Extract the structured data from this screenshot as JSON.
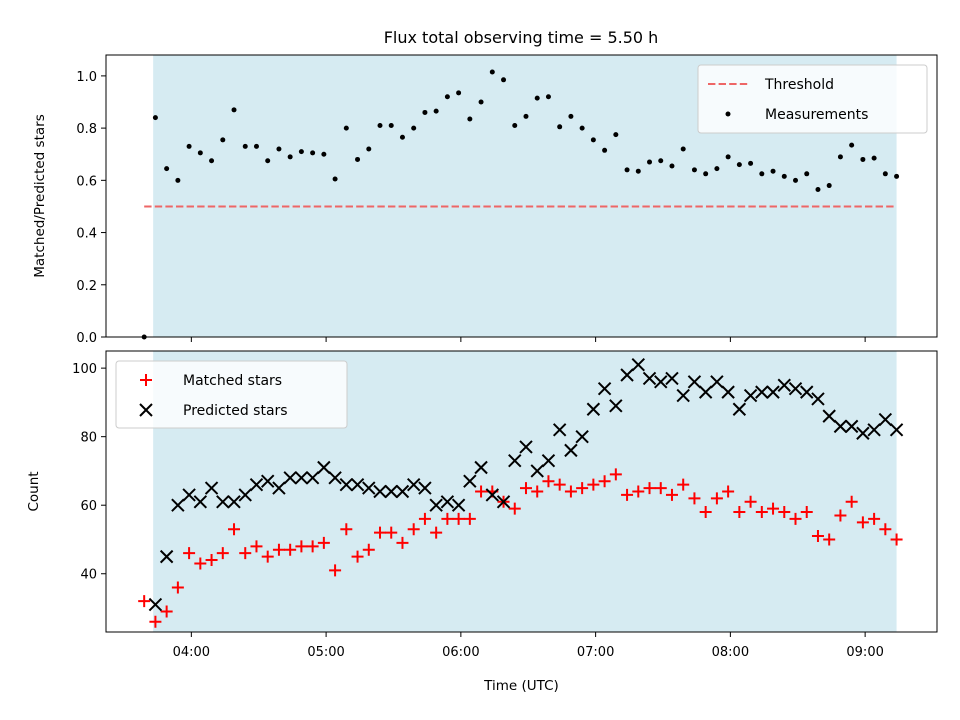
{
  "title": "Flux total observing time = 5.50 h",
  "colors": {
    "shade": "#add8e6",
    "threshold": "#ee6666",
    "measurement": "#000000",
    "matched": "#ff0000",
    "predicted": "#000000"
  },
  "chart_data": [
    {
      "type": "scatter",
      "ylabel": "Matched/Predicted stars",
      "xlabel": "",
      "ylim": [
        0,
        1.08
      ],
      "yticks": [
        0.0,
        0.2,
        0.4,
        0.6,
        0.8,
        1.0
      ],
      "ytick_labels": [
        "0.0",
        "0.2",
        "0.4",
        "0.6",
        "0.8",
        "1.0"
      ],
      "xlim": [
        "03:22",
        "09:32"
      ],
      "shaded_interval": [
        "03:43",
        "09:14"
      ],
      "legend": {
        "position": "top-right",
        "entries": [
          "Threshold",
          "Measurements"
        ]
      },
      "threshold": {
        "name": "Threshold",
        "y": 0.5,
        "x_range": [
          "03:39",
          "09:14"
        ]
      },
      "series": [
        {
          "name": "Measurements",
          "marker": "dot",
          "x": [
            "03:39",
            "03:44",
            "03:49",
            "03:54",
            "03:59",
            "04:04",
            "04:09",
            "04:14",
            "04:19",
            "04:24",
            "04:29",
            "04:34",
            "04:39",
            "04:44",
            "04:49",
            "04:54",
            "04:59",
            "05:04",
            "05:09",
            "05:14",
            "05:19",
            "05:24",
            "05:29",
            "05:34",
            "05:39",
            "05:44",
            "05:49",
            "05:54",
            "05:59",
            "06:04",
            "06:09",
            "06:14",
            "06:19",
            "06:24",
            "06:29",
            "06:34",
            "06:39",
            "06:44",
            "06:49",
            "06:54",
            "06:59",
            "07:04",
            "07:09",
            "07:14",
            "07:19",
            "07:24",
            "07:29",
            "07:34",
            "07:39",
            "07:44",
            "07:49",
            "07:54",
            "07:59",
            "08:04",
            "08:09",
            "08:14",
            "08:19",
            "08:24",
            "08:29",
            "08:34",
            "08:39",
            "08:44",
            "08:49",
            "08:54",
            "08:59",
            "09:04",
            "09:09",
            "09:14"
          ],
          "values": [
            0.0,
            0.84,
            0.645,
            0.6,
            0.73,
            0.705,
            0.675,
            0.755,
            0.87,
            0.73,
            0.73,
            0.675,
            0.72,
            0.69,
            0.71,
            0.705,
            0.7,
            0.605,
            0.8,
            0.68,
            0.72,
            0.81,
            0.81,
            0.765,
            0.8,
            0.86,
            0.865,
            0.92,
            0.935,
            0.835,
            0.9,
            1.015,
            0.985,
            0.81,
            0.845,
            0.915,
            0.92,
            0.805,
            0.845,
            0.8,
            0.755,
            0.715,
            0.775,
            0.64,
            0.635,
            0.67,
            0.675,
            0.655,
            0.72,
            0.64,
            0.625,
            0.645,
            0.69,
            0.66,
            0.665,
            0.625,
            0.635,
            0.615,
            0.6,
            0.625,
            0.565,
            0.58,
            0.69,
            0.735,
            0.68,
            0.685,
            0.625,
            0.615
          ]
        }
      ]
    },
    {
      "type": "scatter",
      "ylabel": "Count",
      "xlabel": "Time (UTC)",
      "ylim": [
        23,
        105
      ],
      "yticks": [
        40,
        60,
        80,
        100
      ],
      "ytick_labels": [
        "40",
        "60",
        "80",
        "100"
      ],
      "xlim": [
        "03:22",
        "09:32"
      ],
      "xticks": [
        "04:00",
        "05:00",
        "06:00",
        "07:00",
        "08:00",
        "09:00"
      ],
      "xtick_labels": [
        "04:00",
        "05:00",
        "06:00",
        "07:00",
        "08:00",
        "09:00"
      ],
      "shaded_interval": [
        "03:43",
        "09:14"
      ],
      "legend": {
        "position": "top-left",
        "entries": [
          "Matched stars",
          "Predicted stars"
        ]
      },
      "series": [
        {
          "name": "Matched stars",
          "marker": "plus",
          "x": [
            "03:39",
            "03:44",
            "03:49",
            "03:54",
            "03:59",
            "04:04",
            "04:09",
            "04:14",
            "04:19",
            "04:24",
            "04:29",
            "04:34",
            "04:39",
            "04:44",
            "04:49",
            "04:54",
            "04:59",
            "05:04",
            "05:09",
            "05:14",
            "05:19",
            "05:24",
            "05:29",
            "05:34",
            "05:39",
            "05:44",
            "05:49",
            "05:54",
            "05:59",
            "06:04",
            "06:09",
            "06:14",
            "06:19",
            "06:24",
            "06:29",
            "06:34",
            "06:39",
            "06:44",
            "06:49",
            "06:54",
            "06:59",
            "07:04",
            "07:09",
            "07:14",
            "07:19",
            "07:24",
            "07:29",
            "07:34",
            "07:39",
            "07:44",
            "07:49",
            "07:54",
            "07:59",
            "08:04",
            "08:09",
            "08:14",
            "08:19",
            "08:24",
            "08:29",
            "08:34",
            "08:39",
            "08:44",
            "08:49",
            "08:54",
            "08:59",
            "09:04",
            "09:09",
            "09:14"
          ],
          "values": [
            32,
            26,
            29,
            36,
            46,
            43,
            44,
            46,
            53,
            46,
            48,
            45,
            47,
            47,
            48,
            48,
            49,
            41,
            53,
            45,
            47,
            52,
            52,
            49,
            53,
            56,
            52,
            56,
            56,
            56,
            64,
            64,
            61,
            59,
            65,
            64,
            67,
            66,
            64,
            65,
            66,
            67,
            69,
            63,
            64,
            65,
            65,
            63,
            66,
            62,
            58,
            62,
            64,
            58,
            61,
            58,
            59,
            58,
            56,
            58,
            51,
            50,
            57,
            61,
            55,
            56,
            53,
            50
          ]
        },
        {
          "name": "Predicted stars",
          "marker": "x",
          "x": [
            "03:44",
            "03:49",
            "03:54",
            "03:59",
            "04:04",
            "04:09",
            "04:14",
            "04:19",
            "04:24",
            "04:29",
            "04:34",
            "04:39",
            "04:44",
            "04:49",
            "04:54",
            "04:59",
            "05:04",
            "05:09",
            "05:14",
            "05:19",
            "05:24",
            "05:29",
            "05:34",
            "05:39",
            "05:44",
            "05:49",
            "05:54",
            "05:59",
            "06:04",
            "06:09",
            "06:14",
            "06:19",
            "06:24",
            "06:29",
            "06:34",
            "06:39",
            "06:44",
            "06:49",
            "06:54",
            "06:59",
            "07:04",
            "07:09",
            "07:14",
            "07:19",
            "07:24",
            "07:29",
            "07:34",
            "07:39",
            "07:44",
            "07:49",
            "07:54",
            "07:59",
            "08:04",
            "08:09",
            "08:14",
            "08:19",
            "08:24",
            "08:29",
            "08:34",
            "08:39",
            "08:44",
            "08:49",
            "08:54",
            "08:59",
            "09:04",
            "09:09",
            "09:14"
          ],
          "values": [
            31,
            45,
            60,
            63,
            61,
            65,
            61,
            61,
            63,
            66,
            67,
            65,
            68,
            68,
            68,
            71,
            68,
            66,
            66,
            65,
            64,
            64,
            64,
            66,
            65,
            60,
            61,
            60,
            67,
            71,
            63,
            61,
            73,
            77,
            70,
            73,
            82,
            76,
            80,
            88,
            94,
            89,
            98,
            101,
            97,
            96,
            97,
            92,
            96,
            93,
            96,
            93,
            88,
            92,
            93,
            93,
            95,
            94,
            93,
            91,
            86,
            83,
            83,
            81,
            82,
            85,
            82
          ]
        }
      ]
    }
  ]
}
